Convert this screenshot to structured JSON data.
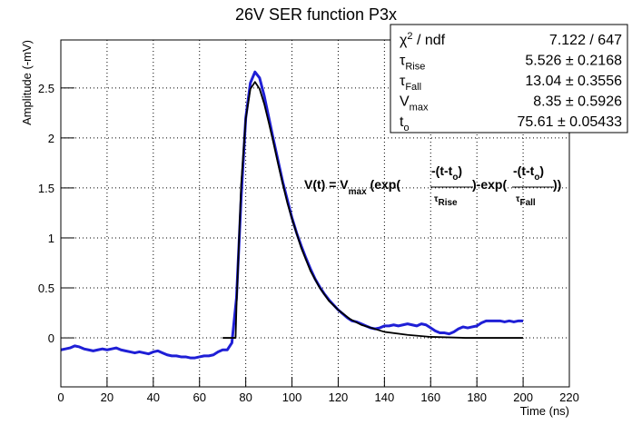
{
  "chart_data": {
    "type": "line",
    "title": "26V SER function P3x",
    "x_label": "Time (ns)",
    "y_label": "Amplitude (-mV)",
    "xlim": [
      0,
      220
    ],
    "xticks": [
      0,
      20,
      40,
      60,
      80,
      100,
      120,
      140,
      160,
      180,
      200,
      220
    ],
    "ylim": [
      -0.49,
      2.98
    ],
    "yticks": [
      0,
      0.5,
      1,
      1.5,
      2,
      2.5
    ],
    "grid": true,
    "series": [
      {
        "color": "#1f1fd6",
        "x": [
          0,
          2,
          4,
          6,
          8,
          10,
          12,
          14,
          16,
          18,
          20,
          22,
          24,
          26,
          28,
          30,
          32,
          34,
          36,
          38,
          40,
          42,
          44,
          46,
          48,
          50,
          52,
          54,
          56,
          58,
          60,
          62,
          64,
          66,
          68,
          70,
          72,
          74,
          76,
          78,
          80,
          82,
          84,
          86,
          88,
          90,
          92,
          94,
          96,
          98,
          100,
          102,
          104,
          106,
          108,
          110,
          112,
          114,
          116,
          118,
          120,
          122,
          124,
          126,
          128,
          130,
          132,
          134,
          136,
          138,
          140,
          142,
          144,
          146,
          148,
          150,
          152,
          154,
          156,
          158,
          160,
          162,
          164,
          166,
          168,
          170,
          172,
          174,
          176,
          178,
          180,
          182,
          184,
          186,
          188,
          190,
          192,
          194,
          196,
          198,
          200
        ],
        "values": [
          -0.12,
          -0.11,
          -0.1,
          -0.08,
          -0.09,
          -0.11,
          -0.12,
          -0.13,
          -0.12,
          -0.11,
          -0.12,
          -0.11,
          -0.1,
          -0.12,
          -0.13,
          -0.14,
          -0.15,
          -0.14,
          -0.15,
          -0.16,
          -0.14,
          -0.13,
          -0.15,
          -0.17,
          -0.18,
          -0.18,
          -0.19,
          -0.19,
          -0.2,
          -0.2,
          -0.19,
          -0.18,
          -0.18,
          -0.17,
          -0.14,
          -0.12,
          -0.12,
          -0.05,
          0.4,
          1.4,
          2.2,
          2.55,
          2.66,
          2.6,
          2.42,
          2.2,
          1.98,
          1.77,
          1.56,
          1.38,
          1.2,
          1.05,
          0.92,
          0.8,
          0.69,
          0.59,
          0.51,
          0.44,
          0.38,
          0.33,
          0.28,
          0.24,
          0.2,
          0.17,
          0.16,
          0.14,
          0.12,
          0.1,
          0.09,
          0.1,
          0.12,
          0.12,
          0.13,
          0.12,
          0.13,
          0.14,
          0.13,
          0.12,
          0.14,
          0.13,
          0.1,
          0.07,
          0.05,
          0.05,
          0.04,
          0.06,
          0.09,
          0.11,
          0.1,
          0.11,
          0.12,
          0.15,
          0.17,
          0.17,
          0.17,
          0.17,
          0.16,
          0.17,
          0.16,
          0.17,
          0.17
        ]
      },
      {
        "color": "#000000",
        "x": [
          70,
          74,
          75.6,
          76,
          78,
          80,
          82,
          84,
          86,
          88,
          90,
          92,
          94,
          96,
          98,
          100,
          104,
          108,
          112,
          116,
          120,
          125,
          130,
          140,
          150,
          160,
          175,
          200
        ],
        "values": [
          0,
          0,
          0,
          0.32,
          1.53,
          2.19,
          2.49,
          2.56,
          2.49,
          2.34,
          2.15,
          1.95,
          1.74,
          1.54,
          1.35,
          1.19,
          0.9,
          0.67,
          0.5,
          0.37,
          0.28,
          0.19,
          0.13,
          0.06,
          0.03,
          0.01,
          0,
          0
        ]
      }
    ],
    "stats": [
      {
        "symbol": "χ",
        "sup": "2",
        "rest": " / ndf",
        "value": "7.122 / 647"
      },
      {
        "symbol": "τ",
        "sub": "Rise",
        "value": "5.526 ± 0.2168"
      },
      {
        "symbol": "τ",
        "sub": "Fall",
        "value": "13.04 ± 0.3556"
      },
      {
        "symbol": "V",
        "sub": "max",
        "value": "8.35 ± 0.5926"
      },
      {
        "symbol": "t",
        "sub": "o",
        "value": "75.61 ± 0.05433"
      }
    ],
    "formula": {
      "lhs": "V(t) = V",
      "lhs_sub": "max",
      "open": " (exp(",
      "num": "-(t-t",
      "num_sub": "o",
      "num_close": ")",
      "tau": "τ",
      "sub1": "Rise",
      "mid": ")-exp(",
      "sub2": "Fall",
      "close": "))"
    }
  }
}
